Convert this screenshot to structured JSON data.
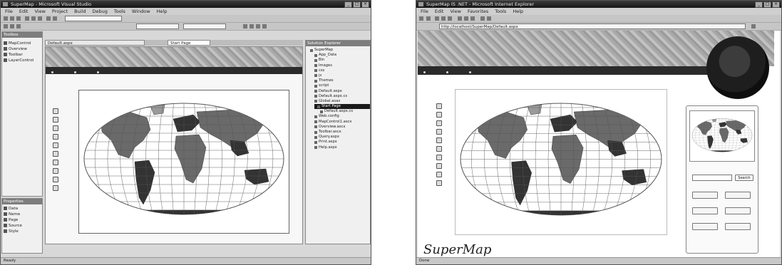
{
  "vs_window": {
    "title": "SuperMap - Microsoft Visual Studio",
    "menu": [
      "File",
      "Edit",
      "View",
      "Project",
      "Build",
      "Debug",
      "Tools",
      "Window",
      "Help"
    ],
    "doc_tabs": [
      "Default.aspx",
      "Start Page"
    ],
    "toolbox": {
      "title": "Toolbox",
      "items": [
        "MapControl",
        "Overview",
        "Toolbar",
        "LayerControl"
      ]
    },
    "bottom_panel": {
      "title": "Properties",
      "items": [
        "Data",
        "Name",
        "Page",
        "Source",
        "Style"
      ]
    },
    "solution": {
      "title": "Solution Explorer",
      "tree": [
        "SuperMap",
        "App_Data",
        "Bin",
        "Images",
        "css",
        "js",
        "Themes",
        "script",
        "Default.aspx",
        "Default.aspx.cs",
        "Global.asax",
        "Start Page",
        "Default.aspx.cs",
        "Web.config",
        "MapControl1.ascx",
        "Overview.ascx",
        "Toolbar.ascx",
        "Query.aspx",
        "Print.aspx",
        "Help.aspx"
      ]
    },
    "status": "Ready"
  },
  "ie_window": {
    "title": "SuperMap IS .NET - Microsoft Internet Explorer",
    "menu": [
      "File",
      "Edit",
      "View",
      "Favorites",
      "Tools",
      "Help"
    ],
    "address": "http://localhost/SuperMap/Default.aspx",
    "side_panel": {
      "search_placeholder": "",
      "search_button": "Search",
      "buttons": [
        "",
        "",
        "",
        "",
        "",
        ""
      ]
    },
    "logo": "SuperMap",
    "footer": "",
    "status": "Done"
  },
  "navbar": [
    "",
    "",
    ""
  ],
  "colors": {
    "window_bg": "#d8d8d8",
    "titlebar": "#1e1e1e",
    "navbar": "#2b2b2b",
    "land_dark": "#333333",
    "land_mid": "#6a6a6a",
    "land_light": "#9a9a9a",
    "grid": "#555555"
  }
}
